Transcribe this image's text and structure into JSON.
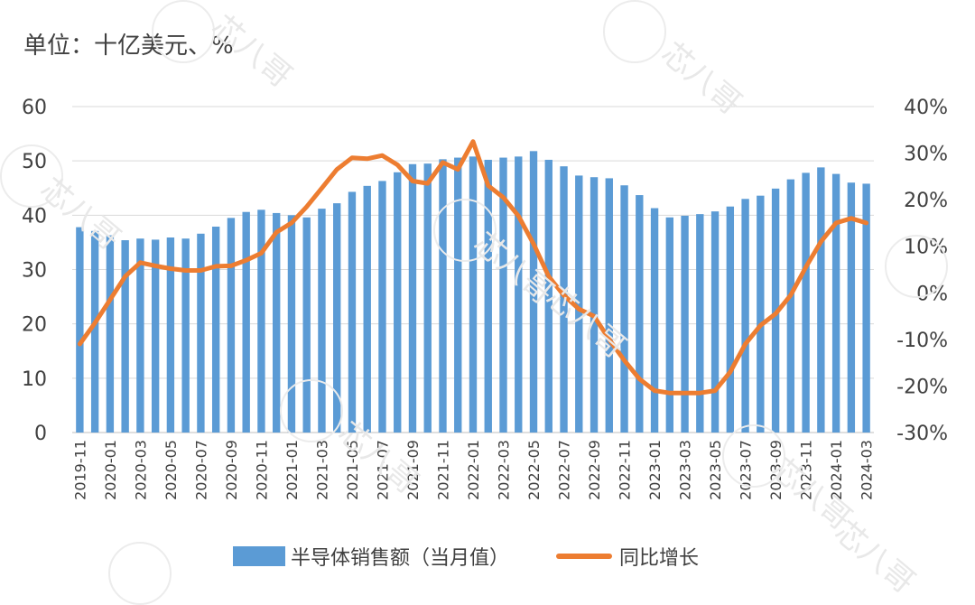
{
  "unit_label": "单位：十亿美元、%",
  "watermark": "芯八哥",
  "colors": {
    "bar": "#5b9bd5",
    "line": "#ed7d31",
    "grid": "#d9d9d9",
    "text": "#404040"
  },
  "legend": {
    "bar_label": "半导体销售额（当月值）",
    "line_label": "同比增长"
  },
  "chart_data": {
    "type": "bar",
    "categories": [
      "2019-11",
      "2019-12",
      "2020-01",
      "2020-02",
      "2020-03",
      "2020-04",
      "2020-05",
      "2020-06",
      "2020-07",
      "2020-08",
      "2020-09",
      "2020-10",
      "2020-11",
      "2020-12",
      "2021-01",
      "2021-02",
      "2021-03",
      "2021-04",
      "2021-05",
      "2021-06",
      "2021-07",
      "2021-08",
      "2021-09",
      "2021-10",
      "2021-11",
      "2021-12",
      "2022-01",
      "2022-02",
      "2022-03",
      "2022-04",
      "2022-05",
      "2022-06",
      "2022-07",
      "2022-08",
      "2022-09",
      "2022-10",
      "2022-11",
      "2022-12",
      "2023-01",
      "2023-02",
      "2023-03",
      "2023-04",
      "2023-05",
      "2023-06",
      "2023-07",
      "2023-08",
      "2023-09",
      "2023-10",
      "2023-11",
      "2023-12",
      "2024-01",
      "2024-02",
      "2024-03"
    ],
    "tick_labels": [
      "2019-11",
      "2020-01",
      "2020-03",
      "2020-05",
      "2020-07",
      "2020-09",
      "2020-11",
      "2021-01",
      "2021-03",
      "2021-05",
      "2021-07",
      "2021-09",
      "2021-11",
      "2022-01",
      "2022-03",
      "2022-05",
      "2022-07",
      "2022-09",
      "2022-11",
      "2023-01",
      "2023-03",
      "2023-05",
      "2023-07",
      "2023-09",
      "2023-11",
      "2024-01",
      "2024-03"
    ],
    "series": [
      {
        "name": "半导体销售额（当月值）",
        "type": "bar",
        "axis": "left",
        "values": [
          37.8,
          37.1,
          36.3,
          35.4,
          35.7,
          35.5,
          35.9,
          35.7,
          36.6,
          37.9,
          39.5,
          40.6,
          41.0,
          40.4,
          40.0,
          39.6,
          41.2,
          42.2,
          44.3,
          45.4,
          46.3,
          47.9,
          49.4,
          49.5,
          50.3,
          50.6,
          50.8,
          50.2,
          50.6,
          50.8,
          51.8,
          50.2,
          49.0,
          47.3,
          47.0,
          46.8,
          45.5,
          43.7,
          41.3,
          39.6,
          39.9,
          40.2,
          40.7,
          41.6,
          43.0,
          43.6,
          44.9,
          46.6,
          47.8,
          48.8,
          47.6,
          46.0,
          45.8
        ]
      },
      {
        "name": "同比增长",
        "type": "line",
        "axis": "right",
        "values": [
          -11.0,
          -6.5,
          -1.5,
          3.5,
          6.5,
          5.8,
          5.2,
          4.8,
          4.8,
          5.7,
          5.8,
          7.0,
          8.5,
          13.0,
          15.0,
          18.5,
          22.5,
          26.5,
          29.0,
          28.8,
          29.5,
          27.5,
          24.0,
          23.5,
          28.0,
          26.5,
          32.5,
          23.0,
          20.5,
          16.5,
          10.5,
          3.5,
          -0.5,
          -3.5,
          -5.0,
          -10.0,
          -14.5,
          -18.5,
          -21.0,
          -21.5,
          -21.5,
          -21.5,
          -21.0,
          -17.0,
          -11.0,
          -7.0,
          -4.5,
          -0.5,
          5.5,
          11.0,
          15.0,
          16.0,
          15.0
        ]
      }
    ],
    "left_axis": {
      "ylim": [
        0,
        60
      ],
      "ticks": [
        "0",
        "10",
        "20",
        "30",
        "40",
        "50",
        "60"
      ]
    },
    "right_axis": {
      "ylim": [
        -30,
        40
      ],
      "ticks": [
        "-30%",
        "-20%",
        "-10%",
        "0%",
        "10%",
        "20%",
        "30%",
        "40%"
      ]
    },
    "grid": true,
    "legend_position": "bottom"
  }
}
